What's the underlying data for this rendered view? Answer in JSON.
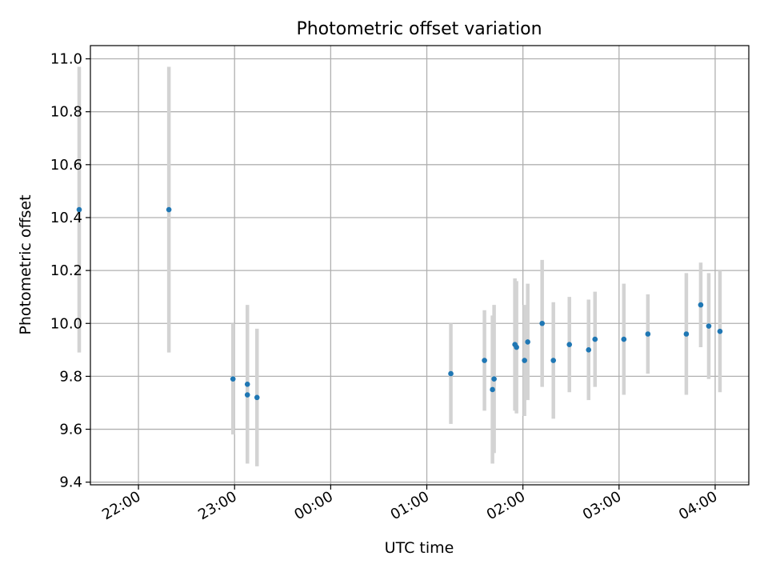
{
  "chart_data": {
    "type": "scatter",
    "title": "Photometric offset variation",
    "xlabel": "UTC time",
    "ylabel": "Photometric offset",
    "xaxis_kind": "time",
    "xlim": [
      "21:30",
      "04:21"
    ],
    "ylim": [
      9.39,
      11.05
    ],
    "x_ticks": [
      "22:00",
      "23:00",
      "00:00",
      "01:00",
      "02:00",
      "03:00",
      "04:00"
    ],
    "y_ticks": [
      "9.4",
      "9.6",
      "9.8",
      "10.0",
      "10.2",
      "10.4",
      "10.6",
      "10.8",
      "11.0"
    ],
    "grid": true,
    "legend": "none",
    "marker_color": "#1f77b4",
    "errorbar_color": "#d3d3d3",
    "series": [
      {
        "points": [
          {
            "x": "21:23",
            "y": 10.43,
            "err": 0.54
          },
          {
            "x": "22:19",
            "y": 10.43,
            "err": 0.54
          },
          {
            "x": "22:59",
            "y": 9.79,
            "err": 0.21
          },
          {
            "x": "23:08",
            "y": 9.77,
            "err": 0.3
          },
          {
            "x": "23:08",
            "y": 9.73,
            "err": 0.26
          },
          {
            "x": "23:14",
            "y": 9.72,
            "err": 0.26
          },
          {
            "x": "01:15",
            "y": 9.81,
            "err": 0.19
          },
          {
            "x": "01:36",
            "y": 9.86,
            "err": 0.19
          },
          {
            "x": "01:41",
            "y": 9.75,
            "err": 0.28
          },
          {
            "x": "01:42",
            "y": 9.79,
            "err": 0.28
          },
          {
            "x": "01:55",
            "y": 9.92,
            "err": 0.25
          },
          {
            "x": "01:56",
            "y": 9.91,
            "err": 0.25
          },
          {
            "x": "02:01",
            "y": 9.86,
            "err": 0.21
          },
          {
            "x": "02:03",
            "y": 9.93,
            "err": 0.22
          },
          {
            "x": "02:12",
            "y": 10.0,
            "err": 0.24
          },
          {
            "x": "02:19",
            "y": 9.86,
            "err": 0.22
          },
          {
            "x": "02:29",
            "y": 9.92,
            "err": 0.18
          },
          {
            "x": "02:41",
            "y": 9.9,
            "err": 0.19
          },
          {
            "x": "02:45",
            "y": 9.94,
            "err": 0.18
          },
          {
            "x": "03:03",
            "y": 9.94,
            "err": 0.21
          },
          {
            "x": "03:18",
            "y": 9.96,
            "err": 0.15
          },
          {
            "x": "03:42",
            "y": 9.96,
            "err": 0.23
          },
          {
            "x": "03:51",
            "y": 10.07,
            "err": 0.16
          },
          {
            "x": "03:56",
            "y": 9.99,
            "err": 0.2
          },
          {
            "x": "04:03",
            "y": 9.97,
            "err": 0.23
          }
        ]
      }
    ]
  }
}
